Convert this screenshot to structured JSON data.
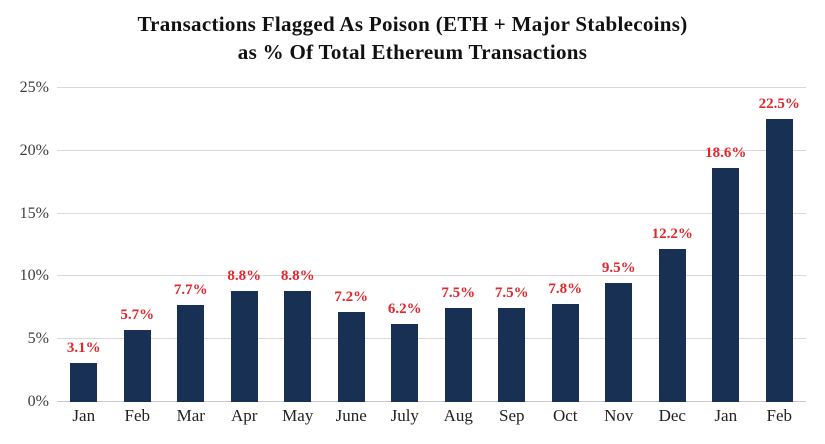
{
  "title": {
    "line1": "Transactions Flagged As Poison (ETH + Major Stablecoins)",
    "line2": "as % Of Total Ethereum Transactions"
  },
  "chart_data": {
    "type": "bar",
    "title": "Transactions Flagged As Poison (ETH + Major Stablecoins) as % Of Total Ethereum Transactions",
    "categories": [
      "Jan",
      "Feb",
      "Mar",
      "Apr",
      "May",
      "June",
      "July",
      "Aug",
      "Sep",
      "Oct",
      "Nov",
      "Dec",
      "Jan",
      "Feb"
    ],
    "values": [
      3.1,
      5.7,
      7.7,
      8.8,
      8.8,
      7.2,
      6.2,
      7.5,
      7.5,
      7.8,
      9.5,
      12.2,
      18.6,
      22.5
    ],
    "data_labels": [
      "3.1%",
      "5.7%",
      "7.7%",
      "8.8%",
      "8.8%",
      "7.2%",
      "6.2%",
      "7.5%",
      "7.5%",
      "7.8%",
      "9.5%",
      "12.2%",
      "18.6%",
      "22.5%"
    ],
    "xlabel": "",
    "ylabel": "",
    "y_ticks": [
      "0%",
      "5%",
      "10%",
      "15%",
      "20%",
      "25%"
    ],
    "y_tick_values": [
      0,
      5,
      10,
      15,
      20,
      25
    ],
    "ylim": [
      0,
      25
    ],
    "grid": true,
    "legend": false,
    "colors": {
      "bar": "#173054",
      "data_label": "#e4252b",
      "gridline": "#d9d9d9",
      "axis_text": "#3d3d3d",
      "background": "#ffffff"
    }
  }
}
